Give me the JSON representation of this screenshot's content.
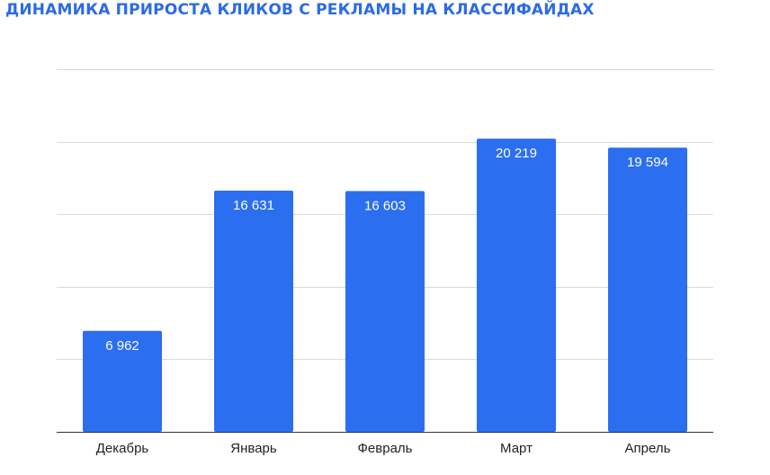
{
  "chart_data": {
    "type": "bar",
    "title": "ДИНАМИКА ПРИРОСТА КЛИКОВ С РЕКЛАМЫ НА КЛАССИФАЙДАХ",
    "xlabel": "",
    "ylabel": "",
    "categories": [
      "Декабрь",
      "Январь",
      "Февраль",
      "Март",
      "Апрель"
    ],
    "values": [
      6962,
      16631,
      16603,
      20219,
      19594
    ],
    "data_labels": [
      "6 962",
      "16 631",
      "16 603",
      "20 219",
      "19 594"
    ],
    "ylim": [
      0,
      25000
    ],
    "gridlines": [
      0,
      5000,
      10000,
      15000,
      20000,
      25000
    ],
    "grid": true,
    "y_tick_labels_visible": false,
    "legend": "none",
    "colors": {
      "title": "#2b6ae8",
      "bar": "#2b6ef0",
      "grid": "#d9d9d9",
      "baseline": "#333333",
      "bar_label": "#ffffff",
      "category_label": "#222222"
    }
  }
}
